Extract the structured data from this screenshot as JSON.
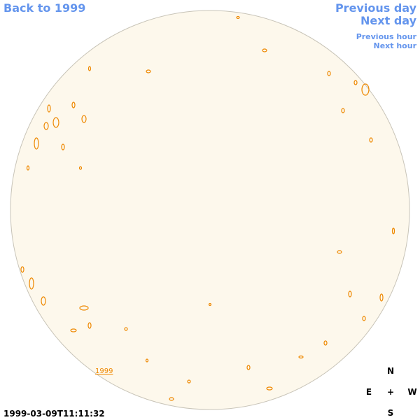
{
  "navigation": {
    "back": "Back to 1999",
    "previous_day": "Previous day",
    "next_day": "Next day",
    "previous_hour": "Previous hour",
    "next_hour": "Next hour"
  },
  "disk_label": "1999",
  "compass": {
    "north": "N",
    "east": "E",
    "center": "+",
    "west": "W",
    "south": "S"
  },
  "timestamp": "1999-03-09T11:11:32"
}
